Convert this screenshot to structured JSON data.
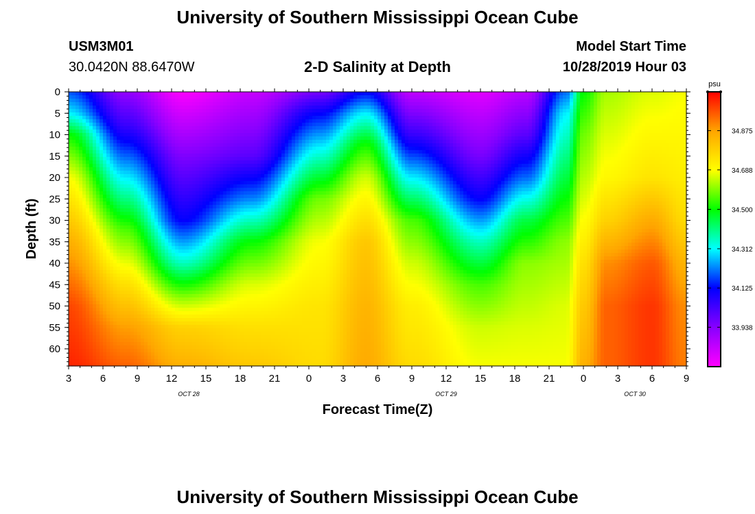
{
  "header": {
    "title_top": "University of Southern Mississippi Ocean Cube",
    "station_id": "USM3M01",
    "coordinates": "30.0420N 88.6470W",
    "plot_title": "2-D Salinity at Depth",
    "model_label": "Model Start Time",
    "model_time": "10/28/2019 Hour 03",
    "title_bottom": "University of Southern Mississippi Ocean Cube"
  },
  "colors": {
    "ramp": [
      "#ff00ff",
      "#8800ff",
      "#0000ff",
      "#00ffff",
      "#00ff00",
      "#ffff00",
      "#ffa500",
      "#ff0000"
    ]
  },
  "chart_data": {
    "type": "heatmap",
    "title": "2-D Salinity at Depth",
    "xlabel": "Forecast Time(Z)",
    "ylabel": "Depth (ft)",
    "x_ticks": [
      "3",
      "6",
      "9",
      "12",
      "15",
      "18",
      "21",
      "0",
      "3",
      "6",
      "9",
      "12",
      "15",
      "18",
      "21",
      "0",
      "3",
      "6",
      "9"
    ],
    "x_hours_range": [
      0,
      54
    ],
    "date_labels": [
      {
        "text": "OCT 28",
        "hour": 10.5
      },
      {
        "text": "OCT 29",
        "hour": 33
      },
      {
        "text": "OCT 30",
        "hour": 49.5
      }
    ],
    "y_ticks": [
      "0",
      "5",
      "10",
      "15",
      "20",
      "25",
      "30",
      "35",
      "40",
      "45",
      "50",
      "55",
      "60"
    ],
    "ylim": [
      0,
      64
    ],
    "colorbar": {
      "unit": "psu",
      "labels": [
        "34.875",
        "34.688",
        "34.500",
        "34.312",
        "34.125",
        "33.938"
      ],
      "range": [
        33.75,
        35.06
      ]
    },
    "profile_columns": [
      {
        "hour": 0,
        "depths": [
          0,
          5,
          10,
          20,
          35,
          50,
          64
        ],
        "values": [
          34.18,
          34.3,
          34.5,
          34.68,
          34.85,
          34.98,
          35.02
        ]
      },
      {
        "hour": 5,
        "depths": [
          0,
          8,
          20,
          32,
          45,
          55,
          64
        ],
        "values": [
          33.92,
          34.05,
          34.3,
          34.55,
          34.75,
          34.88,
          34.95
        ]
      },
      {
        "hour": 10,
        "depths": [
          0,
          15,
          30,
          40,
          48,
          55,
          64
        ],
        "values": [
          33.76,
          33.95,
          34.12,
          34.36,
          34.6,
          34.78,
          34.85
        ]
      },
      {
        "hour": 16,
        "depths": [
          0,
          15,
          25,
          35,
          45,
          55,
          64
        ],
        "values": [
          33.84,
          34.0,
          34.22,
          34.5,
          34.66,
          34.75,
          34.8
        ]
      },
      {
        "hour": 22,
        "depths": [
          0,
          5,
          15,
          25,
          35,
          50,
          64
        ],
        "values": [
          33.96,
          34.12,
          34.35,
          34.58,
          34.68,
          34.74,
          34.76
        ]
      },
      {
        "hour": 26,
        "depths": [
          0,
          5,
          12,
          20,
          35,
          50,
          64
        ],
        "values": [
          34.12,
          34.3,
          34.5,
          34.65,
          34.8,
          34.84,
          34.86
        ]
      },
      {
        "hour": 30,
        "depths": [
          0,
          10,
          20,
          30,
          40,
          50,
          64
        ],
        "values": [
          33.85,
          34.05,
          34.3,
          34.55,
          34.65,
          34.72,
          34.76
        ]
      },
      {
        "hour": 36,
        "depths": [
          0,
          15,
          25,
          35,
          45,
          55,
          64
        ],
        "values": [
          33.8,
          33.96,
          34.12,
          34.36,
          34.55,
          34.65,
          34.68
        ]
      },
      {
        "hour": 40,
        "depths": [
          0,
          10,
          20,
          30,
          40,
          55,
          64
        ],
        "values": [
          33.86,
          34.0,
          34.2,
          34.45,
          34.6,
          34.66,
          34.68
        ]
      },
      {
        "hour": 43.5,
        "depths": [
          0,
          5,
          15,
          25,
          35,
          50,
          64
        ],
        "values": [
          34.2,
          34.3,
          34.4,
          34.5,
          34.6,
          34.66,
          34.68
        ]
      },
      {
        "hour": 45,
        "depths": [
          0,
          10,
          25,
          40,
          50,
          64
        ],
        "values": [
          34.5,
          34.58,
          34.66,
          34.75,
          34.8,
          34.85
        ]
      },
      {
        "hour": 47,
        "depths": [
          0,
          10,
          20,
          30,
          40,
          50,
          64
        ],
        "values": [
          34.62,
          34.66,
          34.7,
          34.78,
          34.9,
          34.95,
          34.95
        ]
      },
      {
        "hour": 51,
        "depths": [
          0,
          10,
          20,
          30,
          40,
          50,
          64
        ],
        "values": [
          34.66,
          34.7,
          34.74,
          34.86,
          34.96,
          35.0,
          35.0
        ]
      },
      {
        "hour": 54,
        "depths": [
          0,
          10,
          20,
          30,
          40,
          50,
          64
        ],
        "values": [
          34.68,
          34.7,
          34.72,
          34.76,
          34.84,
          34.9,
          34.92
        ]
      }
    ]
  }
}
